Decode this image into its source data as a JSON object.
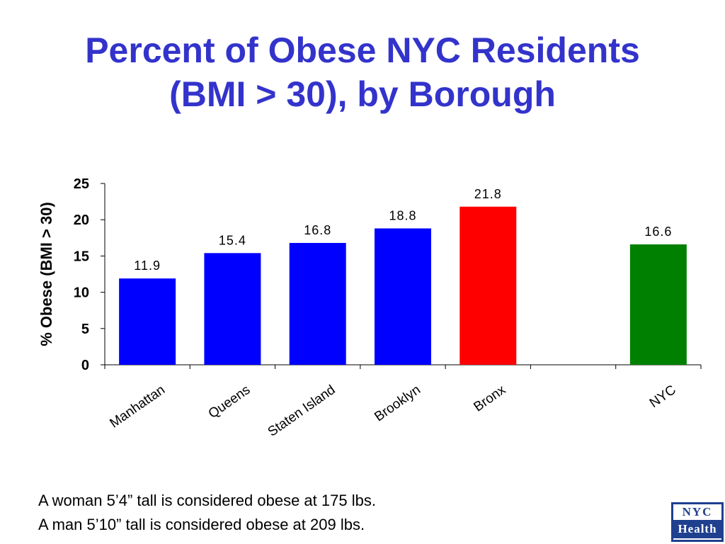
{
  "page": {
    "title_line1": "Percent of Obese NYC Residents",
    "title_line2": "(BMI > 30), by Borough",
    "note_line1": "A woman 5’4” tall is considered obese at 175 lbs.",
    "note_line2": "A man 5’10” tall is considered obese at 209 lbs.",
    "logo": {
      "top": "NYC",
      "bottom": "Health"
    }
  },
  "chart_data": {
    "type": "bar",
    "title": "",
    "xlabel": "",
    "ylabel": "% Obese (BMI > 30)",
    "ylim": [
      0,
      25
    ],
    "yticks": [
      0,
      5,
      10,
      15,
      20,
      25
    ],
    "grid": false,
    "legend": "none",
    "categories": [
      "Manhattan",
      "Queens",
      "Staten Island",
      "Brooklyn",
      "Bronx",
      "",
      "NYC"
    ],
    "values": [
      11.9,
      15.4,
      16.8,
      18.8,
      21.8,
      null,
      16.6
    ],
    "data_labels": [
      "11.9",
      "15.4",
      "16.8",
      "18.8",
      "21.8",
      "",
      "16.6"
    ],
    "colors": [
      "#0000ff",
      "#0000ff",
      "#0000ff",
      "#0000ff",
      "#ff0000",
      "",
      "#008000"
    ]
  }
}
